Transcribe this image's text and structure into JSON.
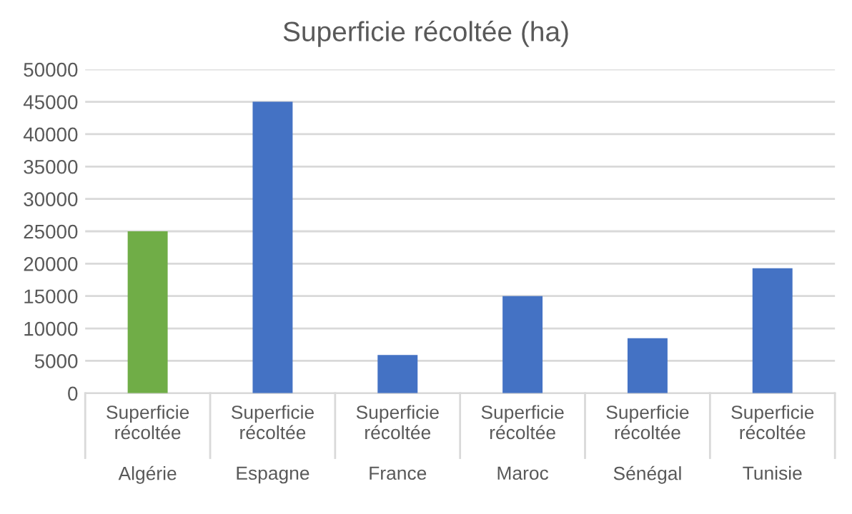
{
  "chart_data": {
    "type": "bar",
    "title": "Superficie récoltée (ha)",
    "categories": [
      "Superficie\nrécoltée\n\nAlgérie",
      "Superficie\nrécoltée\n\nEspagne",
      "Superficie\nrécoltée\n\nFrance",
      "Superficie\nrécoltée\n\nMaroc",
      "Superficie\nrécoltée\n\nSénégal",
      "Superficie\nrécoltée\n\nTunisie"
    ],
    "values": [
      25000,
      45000,
      5900,
      15000,
      8500,
      19300
    ],
    "colors": [
      "#70ad47",
      "#4472c4",
      "#4472c4",
      "#4472c4",
      "#4472c4",
      "#4472c4"
    ],
    "ylim": [
      0,
      50000
    ],
    "yticks": [
      0,
      5000,
      10000,
      15000,
      20000,
      25000,
      30000,
      35000,
      40000,
      45000,
      50000
    ],
    "grid": "y"
  }
}
